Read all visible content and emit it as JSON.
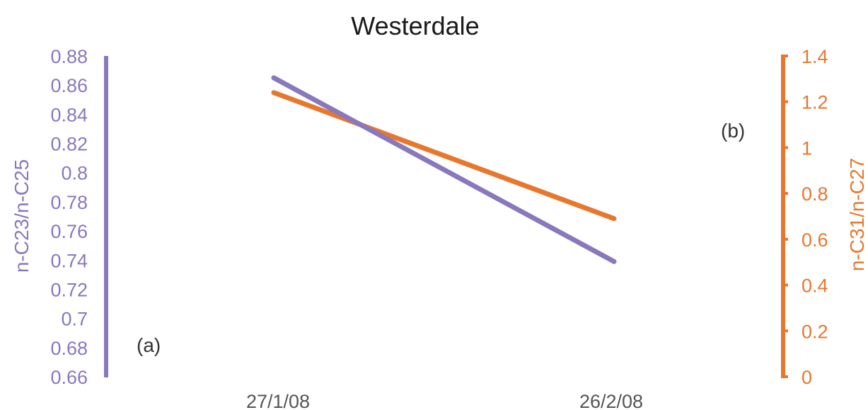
{
  "chart_data": {
    "type": "line",
    "title": "Westerdale",
    "categories": [
      "27/1/08",
      "26/2/08"
    ],
    "left_axis": {
      "label": "n-C23/n-C25",
      "range": [
        0.66,
        0.88
      ],
      "ticks": [
        "0.88",
        "0.86",
        "0.84",
        "0.82",
        "0.8",
        "0.78",
        "0.76",
        "0.74",
        "0.72",
        "0.7",
        "0.68",
        "0.66"
      ],
      "color": "#8a78bd"
    },
    "right_axis": {
      "label": "n-C31/n-C27",
      "range": [
        0,
        1.4
      ],
      "ticks": [
        "1.4",
        "1.2",
        "1",
        "0.8",
        "0.6",
        "0.4",
        "0.2",
        "0"
      ],
      "color": "#e8772e"
    },
    "series": [
      {
        "axis": "left",
        "color": "#8a78bd",
        "values": [
          0.865,
          0.739
        ]
      },
      {
        "axis": "right",
        "color": "#e8772e",
        "values": [
          1.24,
          0.69
        ]
      }
    ],
    "annotations": [
      "(a)",
      "(b)"
    ],
    "grid": false,
    "legend": "none"
  }
}
